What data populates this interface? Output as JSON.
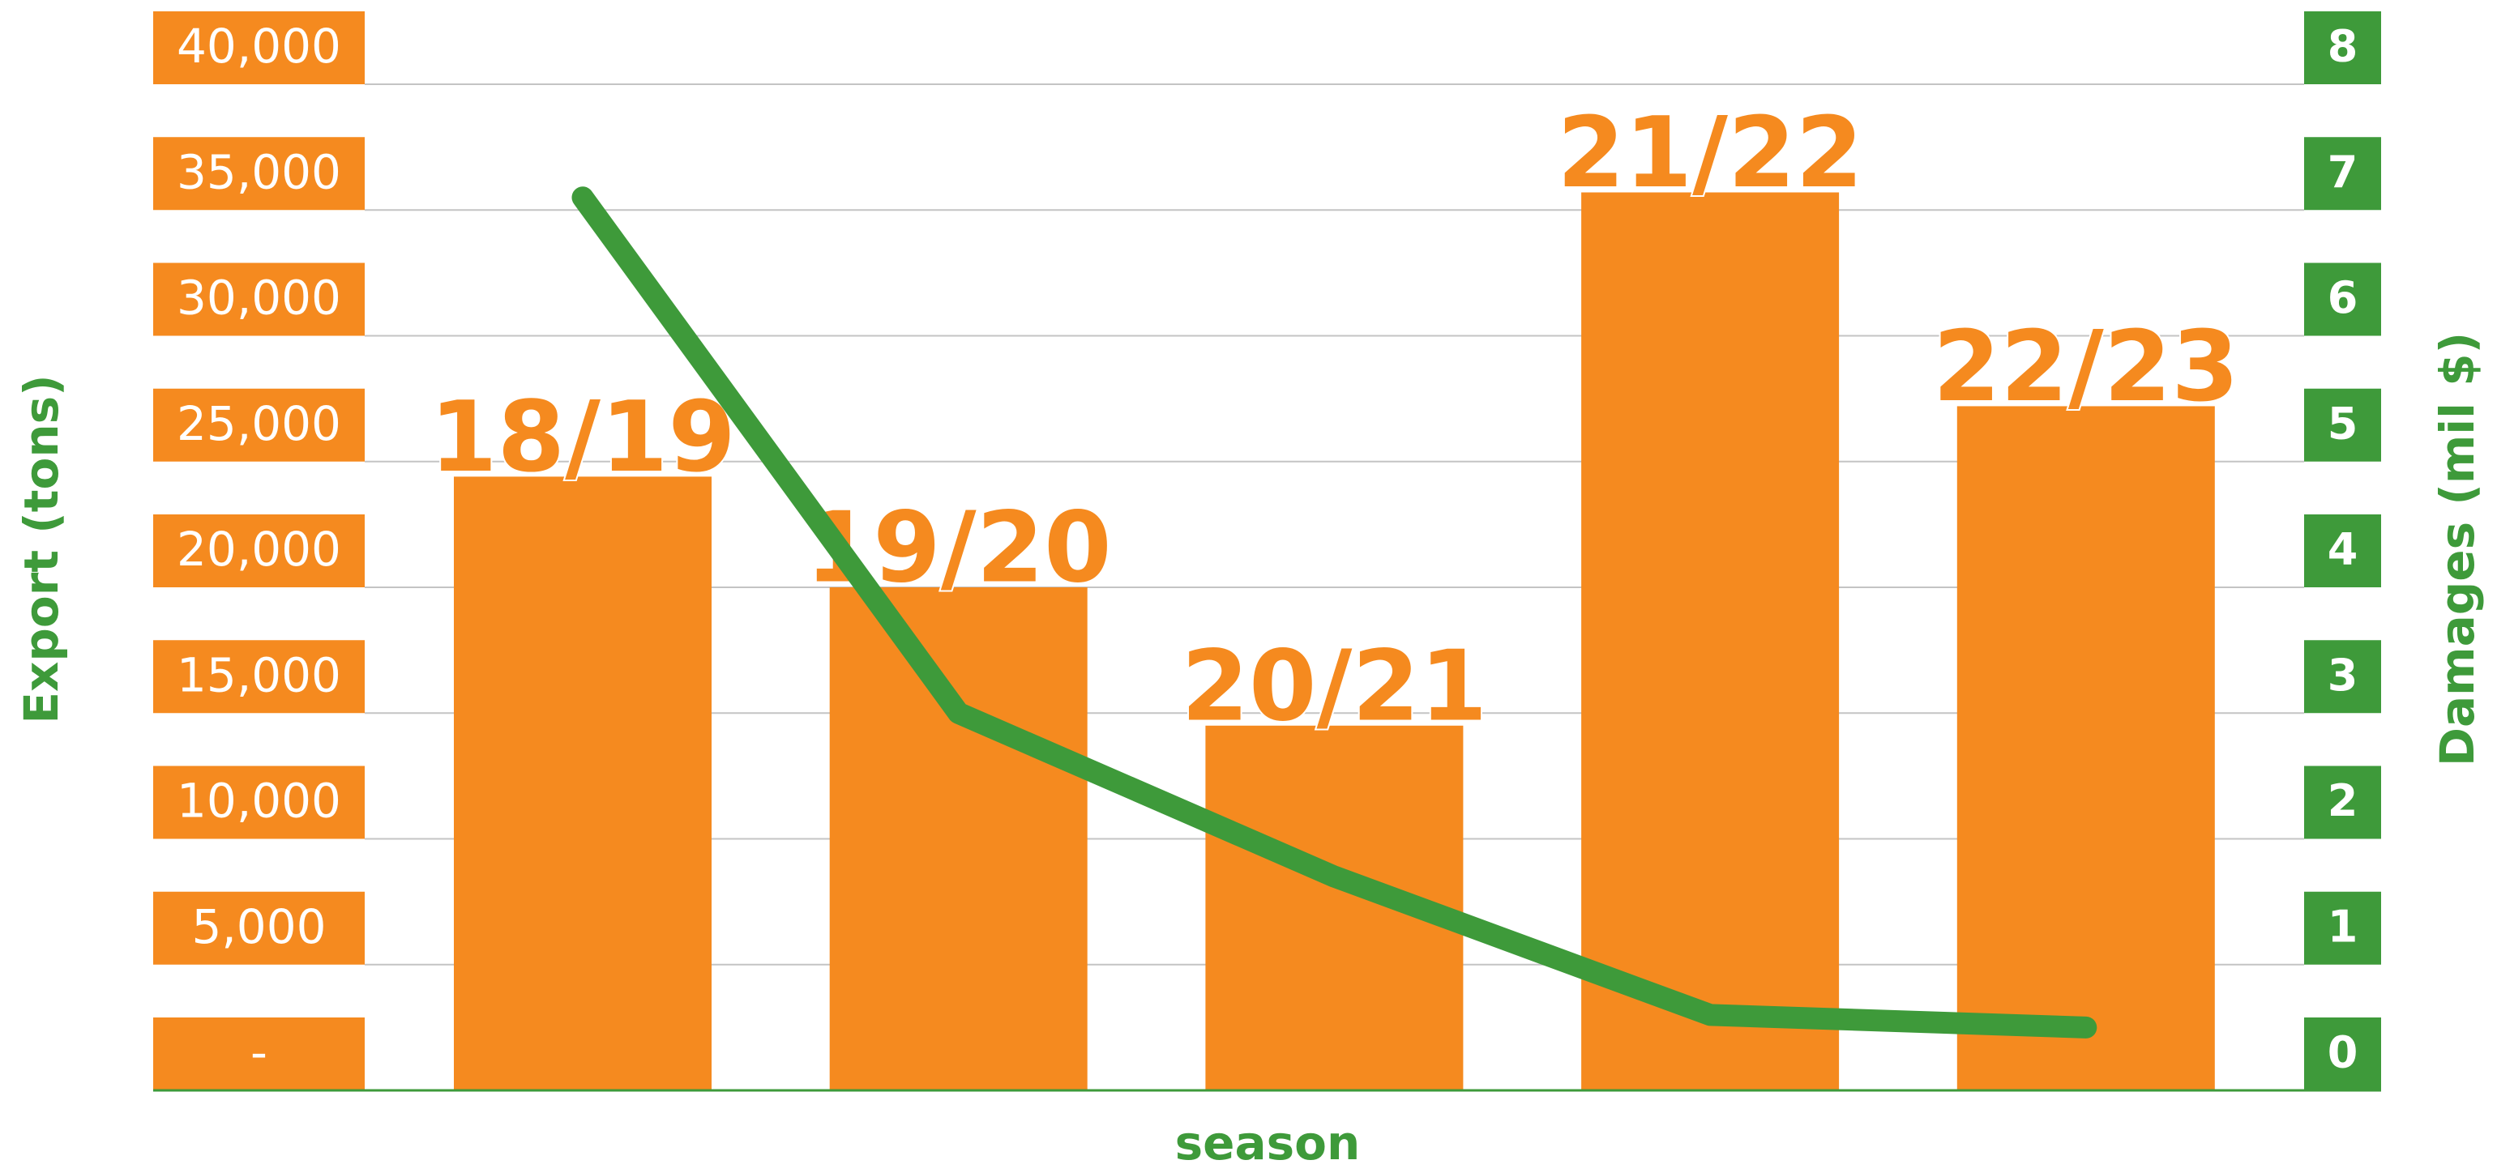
{
  "chart_data": {
    "type": "bar",
    "x_label": "season",
    "y_label": "Export (tons)",
    "y2_label": "Damages (mil $)",
    "categories": [
      "18/19",
      "19/20",
      "20/21",
      "21/22",
      "22/23"
    ],
    "series": [
      {
        "type": "bar",
        "color": "#f58a1f",
        "values": [
          24400,
          20000,
          14500,
          35700,
          27200
        ]
      },
      {
        "type": "line",
        "axis": "y2",
        "color": "#3e9a3a",
        "values": [
          7.1,
          3.0,
          1.7,
          0.6,
          0.5
        ]
      }
    ],
    "ylim": [
      0,
      40000
    ],
    "yticks": [
      {
        "value": 0,
        "label": "-"
      },
      {
        "value": 5000,
        "label": "5,000"
      },
      {
        "value": 10000,
        "label": "10,000"
      },
      {
        "value": 15000,
        "label": "15,000"
      },
      {
        "value": 20000,
        "label": "20,000"
      },
      {
        "value": 25000,
        "label": "25,000"
      },
      {
        "value": 30000,
        "label": "30,000"
      },
      {
        "value": 35000,
        "label": "35,000"
      },
      {
        "value": 40000,
        "label": "40,000"
      }
    ],
    "y2lim": [
      0,
      8
    ],
    "y2ticks": [
      0,
      1,
      2,
      3,
      4,
      5,
      6,
      7,
      8
    ],
    "grid": true
  }
}
